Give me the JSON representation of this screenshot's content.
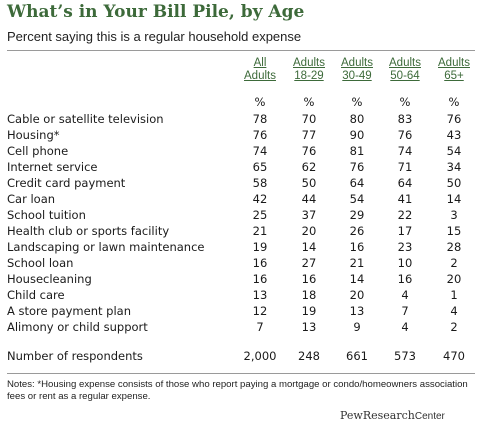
{
  "title": "What’s in Your Bill Pile, by Age",
  "subtitle": "Percent saying this is a regular household expense",
  "columns": [
    {
      "line1": "All",
      "line2": "Adults"
    },
    {
      "line1": "Adults",
      "line2": "18-29"
    },
    {
      "line1": "Adults",
      "line2": "30-49"
    },
    {
      "line1": "Adults",
      "line2": "50-64"
    },
    {
      "line1": "Adults",
      "line2": "65+"
    }
  ],
  "percent_row": [
    "%",
    "%",
    "%",
    "%",
    "%"
  ],
  "chart_data": {
    "type": "table",
    "title": "What’s in Your Bill Pile, by Age",
    "subtitle": "Percent saying this is a regular household expense",
    "columns": [
      "All Adults",
      "Adults 18-29",
      "Adults 30-49",
      "Adults 50-64",
      "Adults 65+"
    ],
    "rows": [
      {
        "label": "Cable or satellite television",
        "values": [
          "78",
          "70",
          "80",
          "83",
          "76"
        ]
      },
      {
        "label": "Housing*",
        "values": [
          "76",
          "77",
          "90",
          "76",
          "43"
        ]
      },
      {
        "label": "Cell phone",
        "values": [
          "74",
          "76",
          "81",
          "74",
          "54"
        ]
      },
      {
        "label": "Internet service",
        "values": [
          "65",
          "62",
          "76",
          "71",
          "34"
        ]
      },
      {
        "label": "Credit card payment",
        "values": [
          "58",
          "50",
          "64",
          "64",
          "50"
        ]
      },
      {
        "label": "Car loan",
        "values": [
          "42",
          "44",
          "54",
          "41",
          "14"
        ]
      },
      {
        "label": "School tuition",
        "values": [
          "25",
          "37",
          "29",
          "22",
          "3"
        ]
      },
      {
        "label": "Health club or sports facility",
        "values": [
          "21",
          "20",
          "26",
          "17",
          "15"
        ]
      },
      {
        "label": "Landscaping or lawn maintenance",
        "values": [
          "19",
          "14",
          "16",
          "23",
          "28"
        ]
      },
      {
        "label": "School loan",
        "values": [
          "16",
          "27",
          "21",
          "10",
          "2"
        ]
      },
      {
        "label": "Housecleaning",
        "values": [
          "16",
          "16",
          "14",
          "16",
          "20"
        ]
      },
      {
        "label": "Child care",
        "values": [
          "13",
          "18",
          "20",
          "4",
          "1"
        ]
      },
      {
        "label": "A store payment plan",
        "values": [
          "12",
          "19",
          "13",
          "7",
          "4"
        ]
      },
      {
        "label": "Alimony or child support",
        "values": [
          "7",
          "13",
          "9",
          "4",
          "2"
        ]
      }
    ],
    "respondents": {
      "label": "Number of respondents",
      "values": [
        "2,000",
        "248",
        "661",
        "573",
        "470"
      ]
    }
  },
  "notes": "Notes: *Housing expense consists of those who report paying a mortgage or condo/homeowners association fees or rent as a regular expense.",
  "logo": {
    "part1": "PewResearch",
    "part2": "Center"
  },
  "colors": {
    "title": "#3d6a3a",
    "header": "#3d6a3a",
    "rule": "#9a9a9a"
  }
}
